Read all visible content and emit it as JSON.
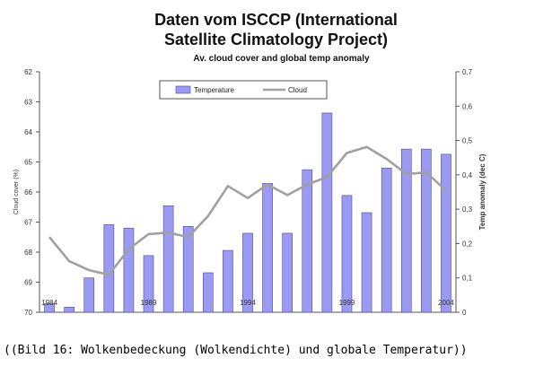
{
  "caption": "((Bild 16: Wolkenbedeckung (Wolkendichte) und globale Temperatur))",
  "chart_data": {
    "type": "bar+line",
    "title": "Daten vom ISCCP (International",
    "title_line2": "Satellite Climatology Project)",
    "subtitle": "Av. cloud cover and global temp anomaly",
    "left_axis": {
      "label": "Cloud cover (%)",
      "ticks": [
        "62",
        "63",
        "64",
        "65",
        "66",
        "67",
        "68",
        "69",
        "70"
      ],
      "range": [
        70,
        62
      ],
      "inverted": true
    },
    "right_axis": {
      "label": "Temp anomaly (dec C)",
      "ticks": [
        "0",
        "0,1",
        "0,2",
        "0,3",
        "0,4",
        "0,5",
        "0,6",
        "0,7"
      ],
      "range": [
        0,
        0.7
      ]
    },
    "x_labels": [
      {
        "index": 0,
        "text": "1984"
      },
      {
        "index": 5,
        "text": "1989"
      },
      {
        "index": 10,
        "text": "1994"
      },
      {
        "index": 15,
        "text": "1999"
      },
      {
        "index": 20,
        "text": "2004"
      }
    ],
    "legend": [
      {
        "name": "Temperature",
        "kind": "bar",
        "color": "#9a9af2"
      },
      {
        "name": "Cloud",
        "kind": "line",
        "color": "#a0a0a0"
      }
    ],
    "legend_position": "top-center",
    "series": [
      {
        "name": "Temperature",
        "axis": "right",
        "values": [
          0.025,
          0.015,
          0.1,
          0.255,
          0.245,
          0.165,
          0.31,
          0.25,
          0.115,
          0.18,
          0.23,
          0.375,
          0.23,
          0.415,
          0.58,
          0.34,
          0.29,
          0.42,
          0.475,
          0.475,
          0.46
        ]
      },
      {
        "name": "Cloud",
        "axis": "left",
        "values": [
          67.5,
          68.3,
          68.6,
          68.75,
          67.9,
          67.4,
          67.35,
          67.5,
          66.8,
          65.8,
          66.2,
          65.75,
          66.1,
          65.75,
          65.5,
          64.7,
          64.5,
          64.9,
          65.4,
          65.35,
          65.95
        ]
      }
    ],
    "grid": false
  }
}
